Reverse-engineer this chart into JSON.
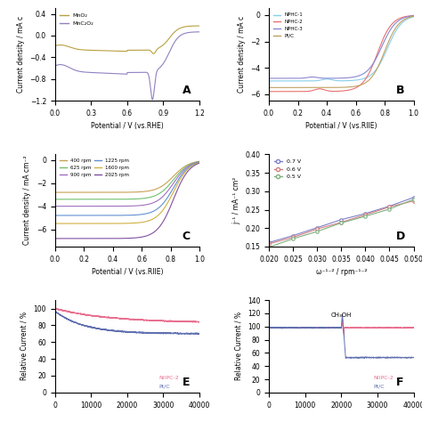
{
  "panel_A": {
    "label": "A",
    "xlabel": "Potential / V (vs.RHE)",
    "ylabel": "Current density / mA c",
    "xlim": [
      0.0,
      1.2
    ],
    "ylim": [
      -1.2,
      0.5
    ],
    "yticks": [
      -1.2,
      -0.8,
      -0.4,
      0.0,
      0.4
    ],
    "xticks": [
      0.0,
      0.3,
      0.6,
      0.9,
      1.2
    ],
    "legend": [
      "MnO₂",
      "MnC₂O₂"
    ],
    "colors": [
      "#b8a040",
      "#9080c0"
    ]
  },
  "panel_B": {
    "label": "B",
    "xlabel": "Potential / V (vs.RIIE)",
    "ylabel": "Current density / mA c",
    "xlim": [
      0.0,
      1.0
    ],
    "ylim": [
      -6.5,
      0.5
    ],
    "yticks": [
      -6,
      -4,
      -2,
      0
    ],
    "xticks": [
      0.0,
      0.2,
      0.4,
      0.6,
      0.8,
      1.0
    ],
    "legend": [
      "NPHC-1",
      "NPHC-2",
      "NPHC-3",
      "Pt/C"
    ],
    "colors": [
      "#87ceeb",
      "#e87070",
      "#8888d0",
      "#c0a060"
    ]
  },
  "panel_C": {
    "label": "C",
    "xlabel": "Potential / V (vs.RIIE)",
    "ylabel": "Current density / mA cm⁻²",
    "xlim": [
      0.0,
      1.0
    ],
    "ylim": [
      -7.5,
      0.5
    ],
    "yticks": [
      0,
      -2,
      -4,
      -6
    ],
    "xticks": [
      0.0,
      0.2,
      0.4,
      0.6,
      0.8,
      1.0
    ],
    "legend": [
      "400 rpm",
      "625 rpm",
      "900 rpm",
      "1225 rpm",
      "1600 rpm",
      "2025 rpm"
    ],
    "colors": [
      "#c8a050",
      "#70c070",
      "#a070c0",
      "#6090d0",
      "#d0b040",
      "#8050a0"
    ]
  },
  "panel_D": {
    "label": "D",
    "xlabel": "ω⁻¹⁻² / rpm⁻¹⁻²",
    "ylabel": "j⁻¹ / mA⁻¹ cm²",
    "xlim": [
      0.02,
      0.05
    ],
    "ylim": [
      0.15,
      0.4
    ],
    "yticks": [
      0.15,
      0.2,
      0.25,
      0.3,
      0.35,
      0.4
    ],
    "xticks": [
      0.02,
      0.025,
      0.03,
      0.035,
      0.04,
      0.045,
      0.05
    ],
    "legend": [
      "0.7 V",
      "0.6 V",
      "0.5 V"
    ],
    "colors": [
      "#8080c8",
      "#d08080",
      "#80b080"
    ]
  },
  "panel_E": {
    "label": "E",
    "xlabel": "",
    "ylabel": "Relative Current / %",
    "xlim": [
      0,
      40000
    ],
    "ylim": [
      0,
      110
    ],
    "yticks": [
      0,
      20,
      40,
      60,
      80,
      100
    ],
    "legend": [
      "NIIPC-2",
      "Pt/C"
    ],
    "colors": [
      "#e87090",
      "#6070b0"
    ]
  },
  "panel_F": {
    "label": "F",
    "xlabel": "",
    "ylabel": "Relative Current / %",
    "xlim": [
      0,
      40000
    ],
    "ylim": [
      0,
      140
    ],
    "yticks": [
      0,
      20,
      40,
      60,
      80,
      100,
      120,
      140
    ],
    "legend": [
      "NIIPC-2",
      "Pt/C"
    ],
    "colors": [
      "#e87090",
      "#6070b0"
    ],
    "annotation": "CH₃OH"
  }
}
